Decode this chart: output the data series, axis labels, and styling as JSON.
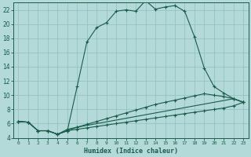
{
  "xlabel": "Humidex (Indice chaleur)",
  "bg_color": "#b3d9d9",
  "grid_color": "#8fbfbf",
  "line_color": "#1a5c4a",
  "xlim": [
    -0.5,
    23.5
  ],
  "ylim": [
    4,
    23
  ],
  "xticks": [
    0,
    1,
    2,
    3,
    4,
    5,
    6,
    7,
    8,
    9,
    10,
    11,
    12,
    13,
    14,
    15,
    16,
    17,
    18,
    19,
    20,
    21,
    22,
    23
  ],
  "yticks": [
    4,
    6,
    8,
    10,
    12,
    14,
    16,
    18,
    20,
    22
  ],
  "curve1_x": [
    0,
    1,
    2,
    3,
    4,
    5,
    6,
    7,
    8,
    9,
    10,
    11,
    12,
    13,
    14,
    15,
    16,
    17,
    18,
    19,
    20,
    21,
    22,
    23
  ],
  "curve1_y": [
    6.3,
    6.2,
    5.0,
    5.0,
    4.5,
    5.0,
    11.2,
    17.5,
    19.5,
    20.2,
    21.8,
    22.0,
    21.8,
    23.3,
    22.1,
    22.4,
    22.6,
    21.8,
    18.2,
    13.8,
    11.2,
    10.3,
    9.5,
    9.0
  ],
  "curve2_x": [
    0,
    1,
    2,
    3,
    4,
    5,
    6,
    22,
    23
  ],
  "curve2_y": [
    6.3,
    6.2,
    5.0,
    5.0,
    4.5,
    5.2,
    5.5,
    9.5,
    9.0
  ],
  "curve3_x": [
    0,
    1,
    2,
    3,
    4,
    5,
    6,
    7,
    8,
    9,
    10,
    11,
    12,
    13,
    14,
    15,
    16,
    17,
    18,
    19,
    20,
    21,
    22,
    23
  ],
  "curve3_y": [
    6.3,
    6.2,
    5.0,
    5.0,
    4.5,
    5.0,
    5.5,
    5.9,
    6.3,
    6.7,
    7.1,
    7.5,
    7.9,
    8.3,
    8.7,
    9.0,
    9.3,
    9.6,
    9.9,
    10.2,
    10.0,
    9.8,
    9.5,
    9.0
  ],
  "curve4_x": [
    0,
    1,
    2,
    3,
    4,
    5,
    6,
    7,
    8,
    9,
    10,
    11,
    12,
    13,
    14,
    15,
    16,
    17,
    18,
    19,
    20,
    21,
    22,
    23
  ],
  "curve4_y": [
    6.3,
    6.2,
    5.0,
    5.0,
    4.5,
    5.0,
    5.2,
    5.4,
    5.6,
    5.8,
    6.0,
    6.2,
    6.4,
    6.6,
    6.8,
    7.0,
    7.2,
    7.4,
    7.6,
    7.8,
    8.0,
    8.2,
    8.5,
    9.0
  ]
}
